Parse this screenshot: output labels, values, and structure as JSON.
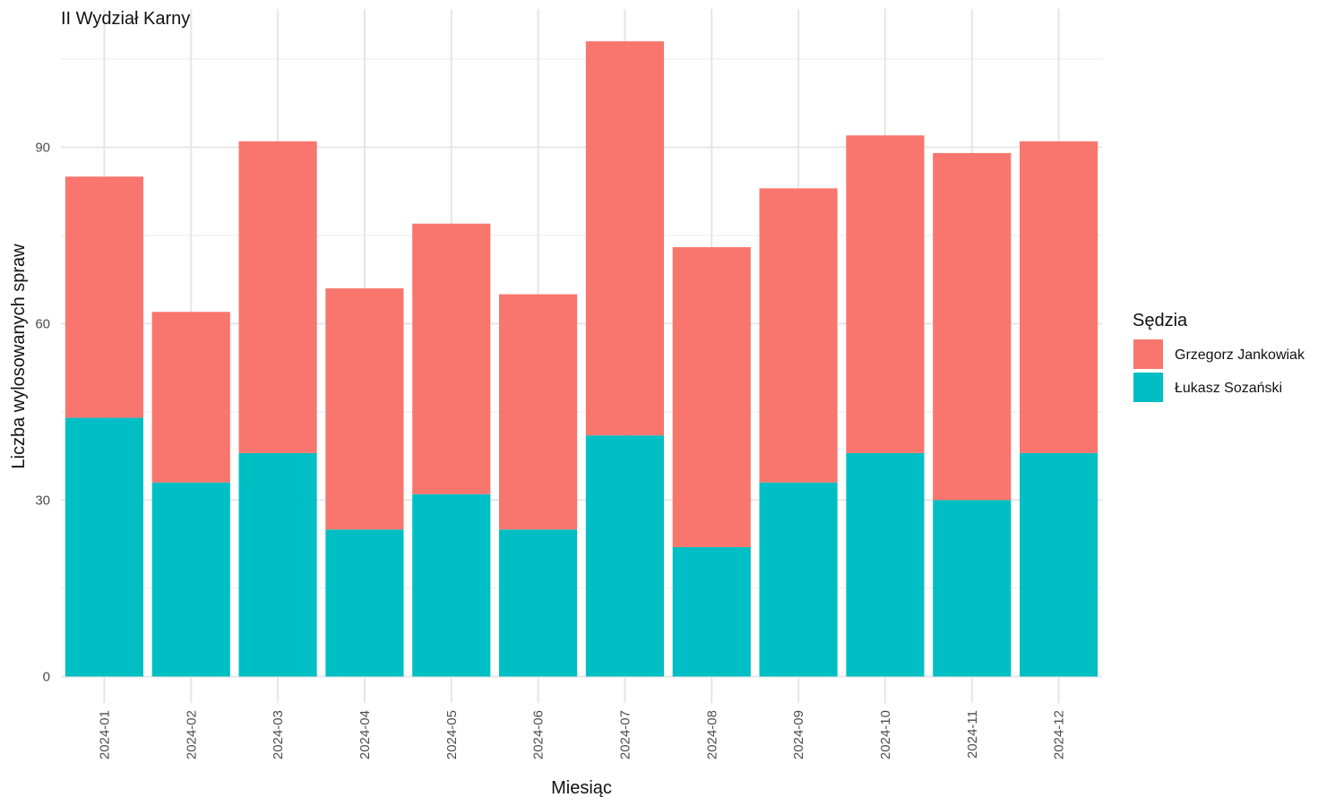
{
  "chart_data": {
    "type": "bar",
    "stacked": true,
    "title": "II Wydział Karny",
    "xlabel": "Miesiąc",
    "ylabel": "Liczba wylosowanych spraw",
    "categories": [
      "2024-01",
      "2024-02",
      "2024-03",
      "2024-04",
      "2024-05",
      "2024-06",
      "2024-07",
      "2024-08",
      "2024-09",
      "2024-10",
      "2024-11",
      "2024-12"
    ],
    "series": [
      {
        "name": "Łukasz Sozański",
        "color": "#00BFC4",
        "values": [
          44,
          33,
          38,
          25,
          31,
          25,
          41,
          22,
          33,
          38,
          30,
          38
        ]
      },
      {
        "name": "Grzegorz Jankowiak",
        "color": "#F8766D",
        "values": [
          41,
          29,
          53,
          41,
          46,
          40,
          67,
          51,
          50,
          54,
          59,
          53
        ]
      }
    ],
    "y_ticks": [
      0,
      30,
      60,
      90
    ],
    "ylim": [
      -4.5,
      113.5
    ],
    "grid": true,
    "legend": {
      "title": "Sędzia",
      "position": "right",
      "entries": [
        {
          "label": "Grzegorz Jankowiak",
          "color": "#F8766D"
        },
        {
          "label": "Łukasz Sozański",
          "color": "#00BFC4"
        }
      ]
    }
  }
}
